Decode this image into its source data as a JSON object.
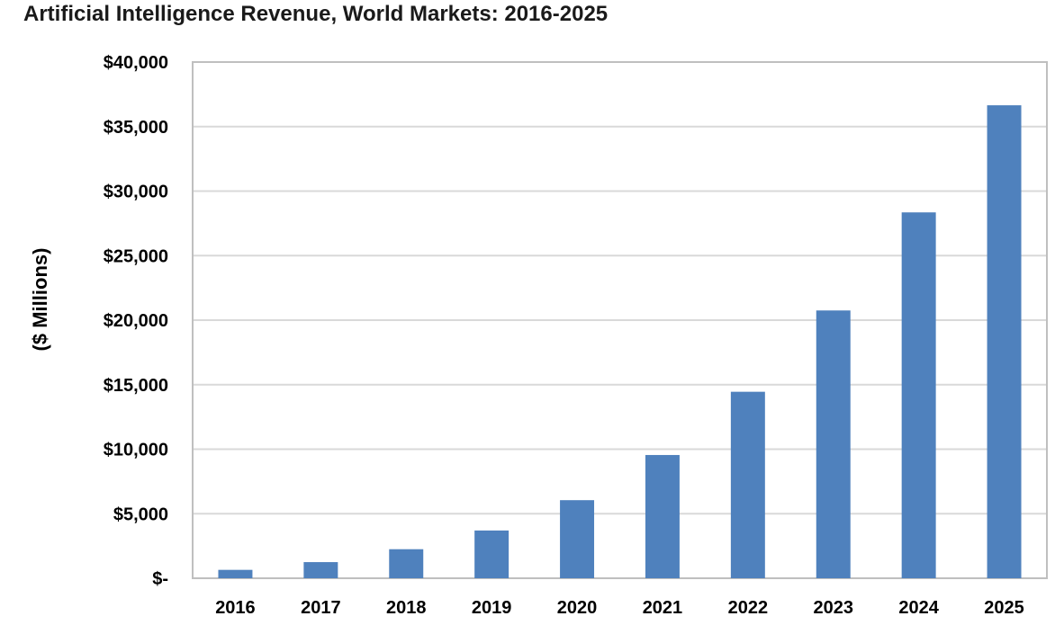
{
  "chart_data": {
    "type": "bar",
    "title": "Artificial Intelligence Revenue, World Markets: 2016-2025",
    "xlabel": "",
    "ylabel": "($ Millions)",
    "categories": [
      "2016",
      "2017",
      "2018",
      "2019",
      "2020",
      "2021",
      "2022",
      "2023",
      "2024",
      "2025"
    ],
    "values": [
      650,
      1250,
      2250,
      3700,
      6050,
      9550,
      14450,
      20750,
      28350,
      36650
    ],
    "ylim": [
      0,
      40000
    ],
    "yticks": [
      0,
      5000,
      10000,
      15000,
      20000,
      25000,
      30000,
      35000,
      40000
    ],
    "ytick_labels": [
      "$-",
      "$5,000",
      "$10,000",
      "$15,000",
      "$20,000",
      "$25,000",
      "$30,000",
      "$35,000",
      "$40,000"
    ],
    "grid": true,
    "legend": "none",
    "colors": {
      "bar": "#4f81bd",
      "grid": "#d9d9d9",
      "frame": "#bfbfbf"
    }
  }
}
